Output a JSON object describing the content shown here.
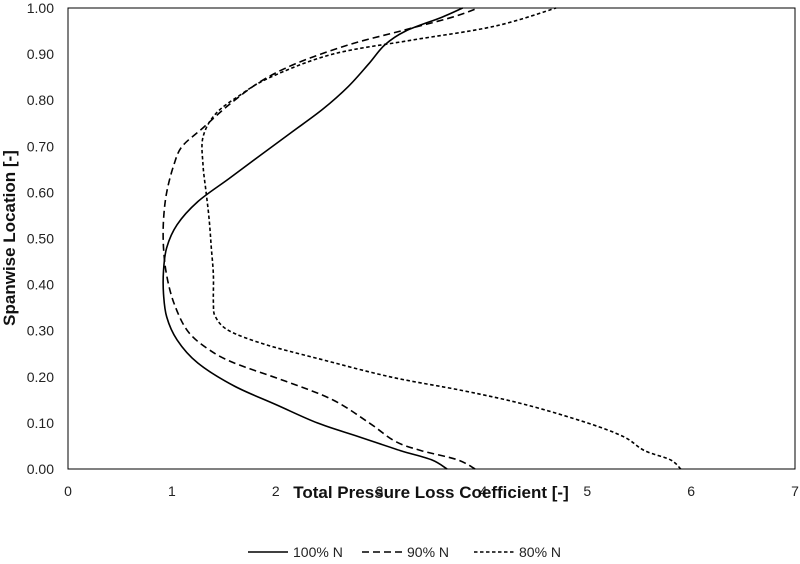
{
  "chart_data": {
    "type": "line",
    "title": "",
    "xlabel": "Total Pressure Loss Coefficient [-]",
    "ylabel": "Spanwise Location [-]",
    "xlim": [
      0,
      7
    ],
    "ylim": [
      0,
      1
    ],
    "x_ticks": [
      "0",
      "1",
      "2",
      "3",
      "4",
      "5",
      "6",
      "7"
    ],
    "y_ticks": [
      "0.00",
      "0.10",
      "0.20",
      "0.30",
      "0.40",
      "0.50",
      "0.60",
      "0.70",
      "0.80",
      "0.90",
      "1.00"
    ],
    "grid": false,
    "legend_position": "bottom",
    "series": [
      {
        "name": "100% N",
        "line_style": "solid",
        "color": "#000000",
        "points": [
          [
            3.65,
            0.0
          ],
          [
            3.5,
            0.02
          ],
          [
            3.2,
            0.04
          ],
          [
            2.8,
            0.07
          ],
          [
            2.4,
            0.1
          ],
          [
            2.0,
            0.14
          ],
          [
            1.6,
            0.18
          ],
          [
            1.25,
            0.23
          ],
          [
            1.05,
            0.28
          ],
          [
            0.95,
            0.33
          ],
          [
            0.92,
            0.38
          ],
          [
            0.92,
            0.43
          ],
          [
            0.95,
            0.48
          ],
          [
            1.05,
            0.53
          ],
          [
            1.25,
            0.58
          ],
          [
            1.55,
            0.63
          ],
          [
            1.85,
            0.68
          ],
          [
            2.15,
            0.73
          ],
          [
            2.45,
            0.78
          ],
          [
            2.7,
            0.83
          ],
          [
            2.9,
            0.88
          ],
          [
            3.05,
            0.92
          ],
          [
            3.25,
            0.95
          ],
          [
            3.6,
            0.98
          ],
          [
            3.8,
            1.0
          ]
        ]
      },
      {
        "name": "90% N",
        "line_style": "dashed",
        "color": "#000000",
        "points": [
          [
            3.92,
            0.0
          ],
          [
            3.75,
            0.02
          ],
          [
            3.4,
            0.04
          ],
          [
            3.15,
            0.06
          ],
          [
            2.9,
            0.1
          ],
          [
            2.55,
            0.15
          ],
          [
            2.1,
            0.19
          ],
          [
            1.6,
            0.23
          ],
          [
            1.35,
            0.26
          ],
          [
            1.15,
            0.3
          ],
          [
            1.02,
            0.36
          ],
          [
            0.95,
            0.42
          ],
          [
            0.92,
            0.48
          ],
          [
            0.92,
            0.54
          ],
          [
            0.95,
            0.6
          ],
          [
            1.02,
            0.66
          ],
          [
            1.1,
            0.7
          ],
          [
            1.3,
            0.74
          ],
          [
            1.55,
            0.79
          ],
          [
            1.85,
            0.84
          ],
          [
            2.2,
            0.88
          ],
          [
            2.7,
            0.92
          ],
          [
            3.2,
            0.95
          ],
          [
            3.7,
            0.98
          ],
          [
            3.95,
            1.0
          ]
        ]
      },
      {
        "name": "80% N",
        "line_style": "dotted",
        "color": "#000000",
        "points": [
          [
            5.9,
            0.0
          ],
          [
            5.8,
            0.02
          ],
          [
            5.55,
            0.04
          ],
          [
            5.35,
            0.07
          ],
          [
            5.0,
            0.1
          ],
          [
            4.4,
            0.14
          ],
          [
            3.8,
            0.17
          ],
          [
            3.1,
            0.2
          ],
          [
            2.4,
            0.24
          ],
          [
            1.9,
            0.27
          ],
          [
            1.55,
            0.3
          ],
          [
            1.42,
            0.33
          ],
          [
            1.4,
            0.36
          ],
          [
            1.4,
            0.42
          ],
          [
            1.38,
            0.48
          ],
          [
            1.36,
            0.54
          ],
          [
            1.33,
            0.6
          ],
          [
            1.3,
            0.66
          ],
          [
            1.3,
            0.72
          ],
          [
            1.42,
            0.77
          ],
          [
            1.65,
            0.81
          ],
          [
            1.95,
            0.85
          ],
          [
            2.55,
            0.9
          ],
          [
            3.3,
            0.93
          ],
          [
            4.1,
            0.96
          ],
          [
            4.7,
            1.0
          ]
        ]
      }
    ]
  }
}
